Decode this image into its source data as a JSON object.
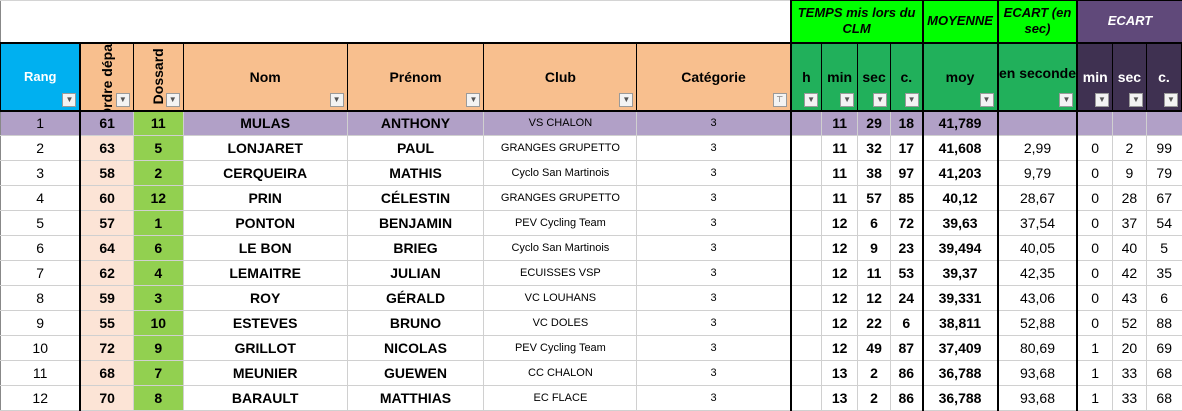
{
  "group_headers": {
    "temps": "TEMPS mis lors du CLM",
    "moyenne": "MOYENNE",
    "ecart_sec": "ECART (en sec)",
    "ecart": "ECART"
  },
  "columns": {
    "rang": "Rang",
    "ordre": "Ordre départ",
    "dossard": "Dossard",
    "nom": "Nom",
    "prenom": "Prénom",
    "club": "Club",
    "categorie": "Catégorie",
    "h": "h",
    "min": "min",
    "sec": "sec",
    "c": "c.",
    "moy": "moy",
    "en_seconde": "en seconde",
    "e_min": "min",
    "e_sec": "sec",
    "e_c": "c."
  },
  "filter_icon": "filter-dropdown-icon",
  "colors": {
    "header_peach": "#f8bf8e",
    "rang_blue": "#00b0f0",
    "green_bright": "#00ff00",
    "green_dark": "#21b05b",
    "purple": "#60497a",
    "purple_dark": "#3f3151",
    "row_highlight": "#b1a0c7",
    "dossard_green": "#92d050",
    "ordre_peach": "#fce4d6"
  },
  "rows": [
    {
      "rang": "1",
      "ordre": "61",
      "dossard": "11",
      "nom": "MULAS",
      "prenom": "ANTHONY",
      "club": "VS CHALON",
      "cat": "3",
      "h": "",
      "min": "11",
      "sec": "29",
      "c": "18",
      "moy": "41,789",
      "ecart": "",
      "emin": "",
      "esec": "",
      "ec": ""
    },
    {
      "rang": "2",
      "ordre": "63",
      "dossard": "5",
      "nom": "LONJARET",
      "prenom": "PAUL",
      "club": "GRANGES GRUPETTO",
      "cat": "3",
      "h": "",
      "min": "11",
      "sec": "32",
      "c": "17",
      "moy": "41,608",
      "ecart": "2,99",
      "emin": "0",
      "esec": "2",
      "ec": "99"
    },
    {
      "rang": "3",
      "ordre": "58",
      "dossard": "2",
      "nom": "CERQUEIRA",
      "prenom": "MATHIS",
      "club": "Cyclo San Martinois",
      "cat": "3",
      "h": "",
      "min": "11",
      "sec": "38",
      "c": "97",
      "moy": "41,203",
      "ecart": "9,79",
      "emin": "0",
      "esec": "9",
      "ec": "79"
    },
    {
      "rang": "4",
      "ordre": "60",
      "dossard": "12",
      "nom": "PRIN",
      "prenom": "CÉLESTIN",
      "club": "GRANGES GRUPETTO",
      "cat": "3",
      "h": "",
      "min": "11",
      "sec": "57",
      "c": "85",
      "moy": "40,12",
      "ecart": "28,67",
      "emin": "0",
      "esec": "28",
      "ec": "67"
    },
    {
      "rang": "5",
      "ordre": "57",
      "dossard": "1",
      "nom": "PONTON",
      "prenom": "BENJAMIN",
      "club": "PEV Cycling Team",
      "cat": "3",
      "h": "",
      "min": "12",
      "sec": "6",
      "c": "72",
      "moy": "39,63",
      "ecart": "37,54",
      "emin": "0",
      "esec": "37",
      "ec": "54"
    },
    {
      "rang": "6",
      "ordre": "64",
      "dossard": "6",
      "nom": "LE BON",
      "prenom": "BRIEG",
      "club": "Cyclo San Martinois",
      "cat": "3",
      "h": "",
      "min": "12",
      "sec": "9",
      "c": "23",
      "moy": "39,494",
      "ecart": "40,05",
      "emin": "0",
      "esec": "40",
      "ec": "5"
    },
    {
      "rang": "7",
      "ordre": "62",
      "dossard": "4",
      "nom": "LEMAITRE",
      "prenom": "JULIAN",
      "club": "ECUISSES VSP",
      "cat": "3",
      "h": "",
      "min": "12",
      "sec": "11",
      "c": "53",
      "moy": "39,37",
      "ecart": "42,35",
      "emin": "0",
      "esec": "42",
      "ec": "35"
    },
    {
      "rang": "8",
      "ordre": "59",
      "dossard": "3",
      "nom": "ROY",
      "prenom": "GÉRALD",
      "club": "VC LOUHANS",
      "cat": "3",
      "h": "",
      "min": "12",
      "sec": "12",
      "c": "24",
      "moy": "39,331",
      "ecart": "43,06",
      "emin": "0",
      "esec": "43",
      "ec": "6"
    },
    {
      "rang": "9",
      "ordre": "55",
      "dossard": "10",
      "nom": "ESTEVES",
      "prenom": "BRUNO",
      "club": "VC DOLES",
      "cat": "3",
      "h": "",
      "min": "12",
      "sec": "22",
      "c": "6",
      "moy": "38,811",
      "ecart": "52,88",
      "emin": "0",
      "esec": "52",
      "ec": "88"
    },
    {
      "rang": "10",
      "ordre": "72",
      "dossard": "9",
      "nom": "GRILLOT",
      "prenom": "NICOLAS",
      "club": "PEV Cycling Team",
      "cat": "3",
      "h": "",
      "min": "12",
      "sec": "49",
      "c": "87",
      "moy": "37,409",
      "ecart": "80,69",
      "emin": "1",
      "esec": "20",
      "ec": "69"
    },
    {
      "rang": "11",
      "ordre": "68",
      "dossard": "7",
      "nom": "MEUNIER",
      "prenom": "GUEWEN",
      "club": "CC CHALON",
      "cat": "3",
      "h": "",
      "min": "13",
      "sec": "2",
      "c": "86",
      "moy": "36,788",
      "ecart": "93,68",
      "emin": "1",
      "esec": "33",
      "ec": "68"
    },
    {
      "rang": "12",
      "ordre": "70",
      "dossard": "8",
      "nom": "BARAULT",
      "prenom": "MATTHIAS",
      "club": "EC FLACE",
      "cat": "3",
      "h": "",
      "min": "13",
      "sec": "2",
      "c": "86",
      "moy": "36,788",
      "ecart": "93,68",
      "emin": "1",
      "esec": "33",
      "ec": "68"
    }
  ]
}
